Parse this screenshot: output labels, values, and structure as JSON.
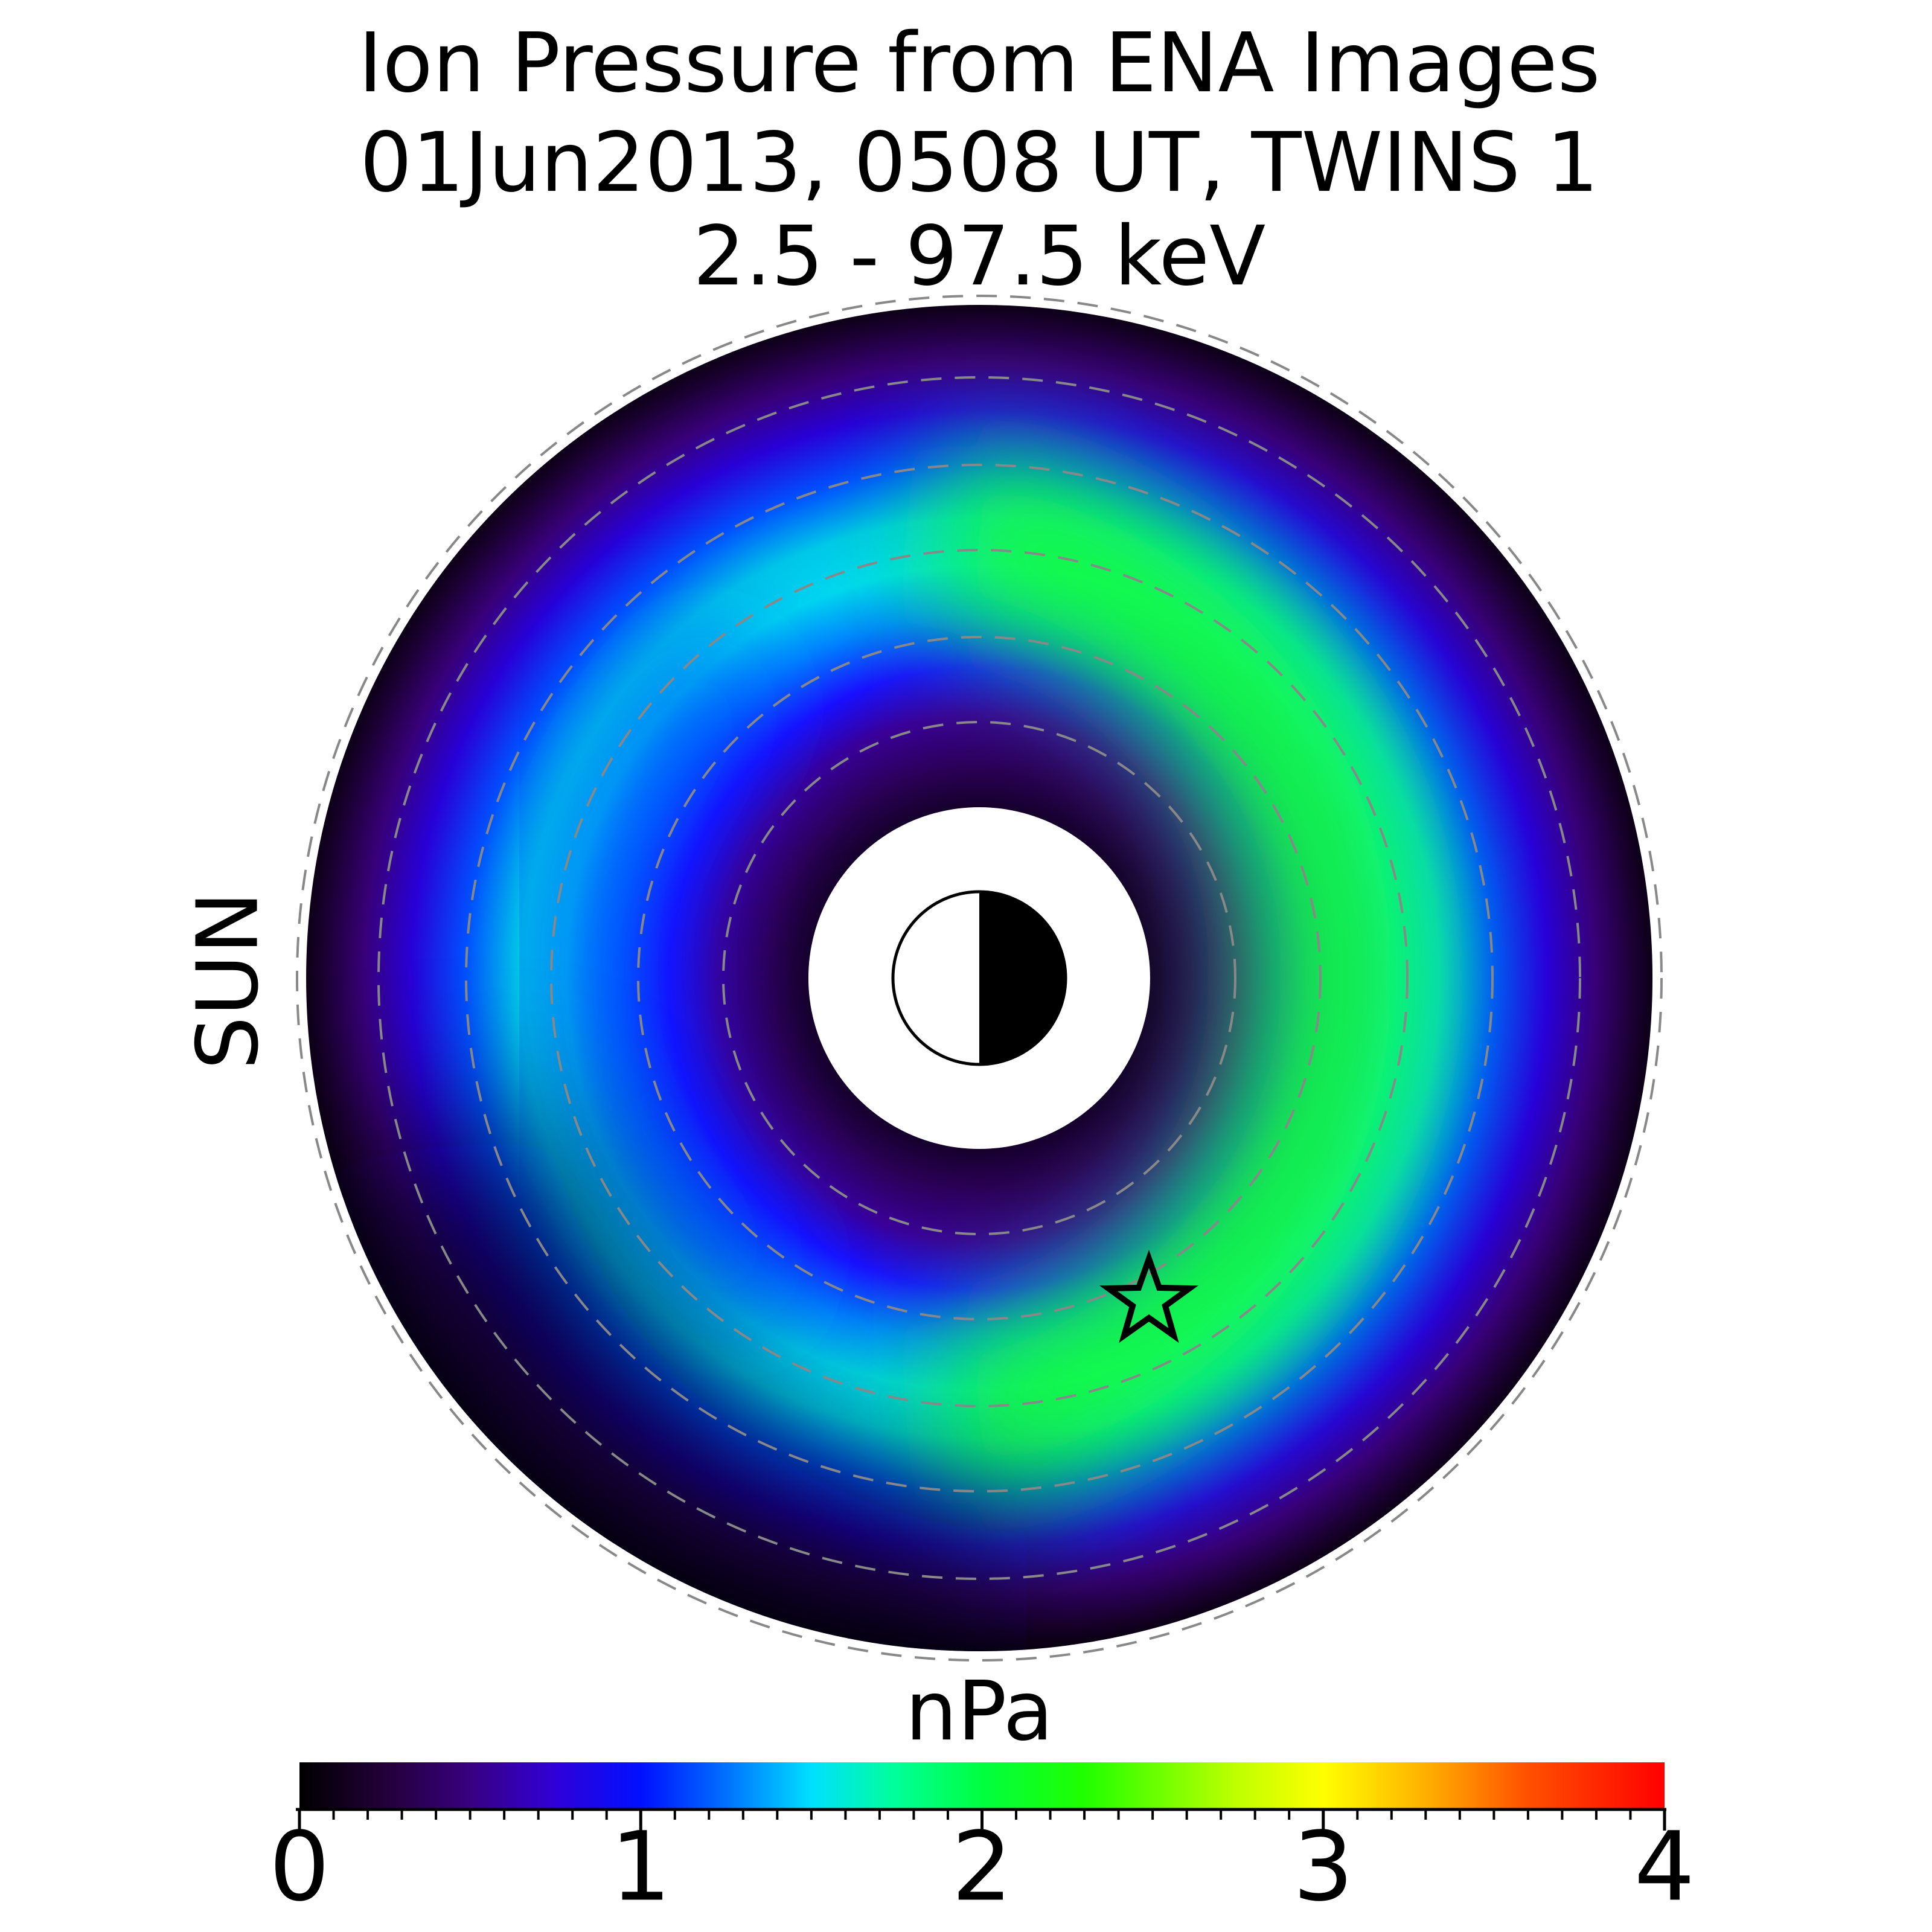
{
  "chart_data": {
    "type": "polar_image",
    "title": [
      "Ion Pressure from  ENA Images",
      "01Jun2013, 0508 UT,  TWINS 1",
      "2.5 - 97.5 keV"
    ],
    "side_label": "SUN",
    "side_label_color": "#f5a000",
    "colorbar": {
      "label": "nPa",
      "clim": [
        0,
        4
      ],
      "ticks": [
        0,
        1,
        2,
        3,
        4
      ],
      "minor_ticks": [
        0.1,
        0.2,
        0.3,
        0.4,
        0.5,
        0.6,
        0.7,
        0.8,
        0.9,
        1.1,
        1.2,
        1.3,
        1.4,
        1.5,
        1.6,
        1.7,
        1.8,
        1.9,
        2.1,
        2.2,
        2.3,
        2.4,
        2.5,
        2.6,
        2.7,
        2.8,
        2.9,
        3.1,
        3.2,
        3.3,
        3.4,
        3.5,
        3.6,
        3.7,
        3.8,
        3.9
      ],
      "colormap": [
        [
          0,
          "#000000"
        ],
        [
          0.25,
          "#220038"
        ],
        [
          0.5,
          "#380080"
        ],
        [
          0.75,
          "#3000d8"
        ],
        [
          1,
          "#0010ff"
        ],
        [
          1.25,
          "#0070ff"
        ],
        [
          1.5,
          "#00e0ff"
        ],
        [
          1.75,
          "#00ff98"
        ],
        [
          2,
          "#00ff40"
        ],
        [
          2.3,
          "#20ff00"
        ],
        [
          2.75,
          "#c0ff00"
        ],
        [
          3,
          "#ffff00"
        ],
        [
          3.3,
          "#ffb000"
        ],
        [
          3.6,
          "#ff5000"
        ],
        [
          4,
          "#ff0000"
        ]
      ]
    }
  }
}
